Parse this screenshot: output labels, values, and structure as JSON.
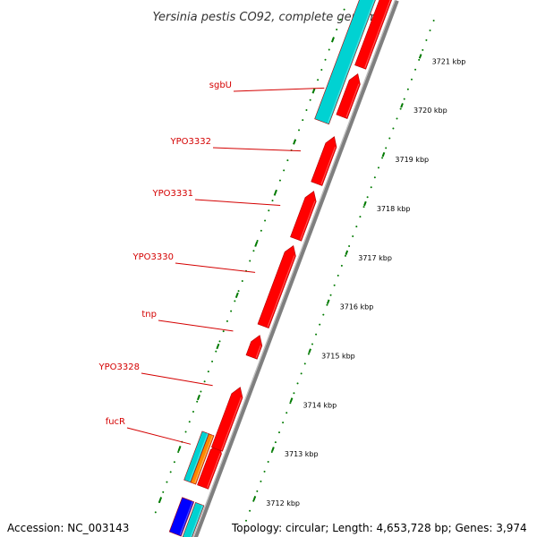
{
  "title": "Yersinia pestis CO92, complete genome",
  "accession": "Accession: NC_003143",
  "topology": "Topology: circular; Length: 4,653,728 bp; Genes: 3,974",
  "colors": {
    "cds": "#ff0000",
    "cds_dark": "#b00000",
    "rna": "#00d2d2",
    "other": "#ff8800",
    "blue": "#0000ff",
    "backbone": "#7f7f7f",
    "ticks": "#007a00",
    "label": "#d40000"
  },
  "gene_labels": [
    "sgbU",
    "YPO3332",
    "YPO3331",
    "YPO3330",
    "tnp",
    "YPO3328",
    "fucR"
  ],
  "scale_labels": [
    "3721 kbp",
    "3720 kbp",
    "3719 kbp",
    "3718 kbp",
    "3717 kbp",
    "3716 kbp",
    "3715 kbp",
    "3714 kbp",
    "3713 kbp",
    "3712 kbp"
  ]
}
